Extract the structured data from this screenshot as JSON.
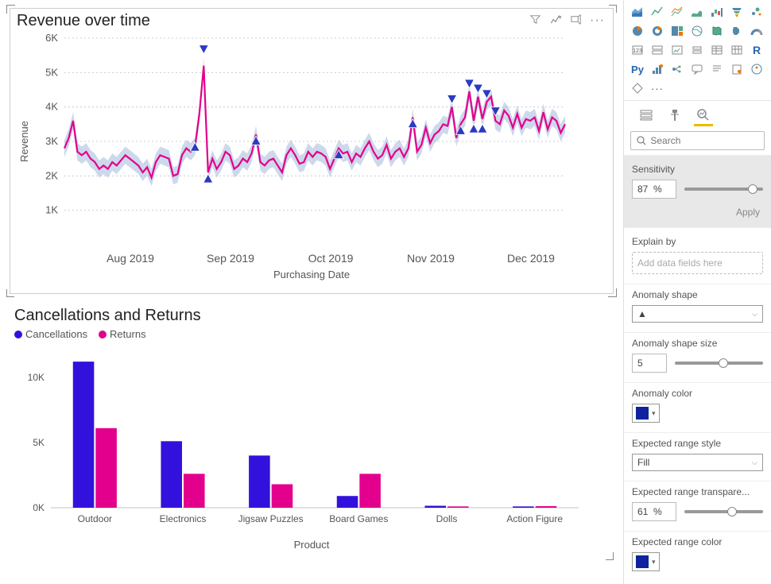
{
  "revenue_chart": {
    "title": "Revenue over time",
    "type": "line",
    "y_axis_label": "Revenue",
    "x_axis_label": "Purchasing Date",
    "ylim": [
      0,
      6000
    ],
    "ytick_step": 1000,
    "ytick_labels": [
      "1K",
      "2K",
      "3K",
      "4K",
      "5K",
      "6K"
    ],
    "x_categories": [
      "Aug 2019",
      "Sep 2019",
      "Oct 2019",
      "Nov 2019",
      "Dec 2019"
    ],
    "line_color": "#e3008c",
    "band_color": "#9bb4d8",
    "anomaly_marker_color": "#2a3ac4",
    "grid_color": "#cccccc",
    "background_color": "#ffffff",
    "label_fontsize": 13,
    "title_fontsize": 20,
    "series": [
      2800,
      3100,
      3600,
      2700,
      2600,
      2700,
      2500,
      2400,
      2200,
      2300,
      2200,
      2400,
      2300,
      2450,
      2600,
      2500,
      2400,
      2300,
      2100,
      2250,
      1950,
      2400,
      2600,
      2550,
      2500,
      2000,
      2050,
      2600,
      2800,
      2700,
      2850,
      3800,
      5200,
      2100,
      2500,
      2200,
      2400,
      2700,
      2600,
      2200,
      2300,
      2500,
      2400,
      2650,
      3200,
      2400,
      2300,
      2450,
      2500,
      2300,
      2100,
      2600,
      2800,
      2600,
      2350,
      2400,
      2700,
      2550,
      2700,
      2650,
      2550,
      2200,
      2500,
      2800,
      2650,
      2700,
      2400,
      2650,
      2550,
      2800,
      3000,
      2700,
      2500,
      2600,
      2900,
      2500,
      2700,
      2800,
      2550,
      2800,
      3700,
      2700,
      2900,
      3400,
      2950,
      3200,
      3300,
      3500,
      3450,
      4000,
      3100,
      3500,
      3700,
      4450,
      3600,
      4300,
      3650,
      4150,
      4300,
      3600,
      3500,
      3900,
      3750,
      3400,
      3800,
      3400,
      3650,
      3600,
      3700,
      3300,
      3850,
      3350,
      3700,
      3600,
      3250,
      3500
    ],
    "anomalies_up": [
      [
        32,
        5500
      ],
      [
        89,
        4050
      ],
      [
        93,
        4500
      ],
      [
        95,
        4360
      ],
      [
        97,
        4200
      ],
      [
        99,
        3700
      ]
    ],
    "anomalies_down": [
      [
        30,
        3020
      ],
      [
        33,
        2100
      ],
      [
        44,
        3200
      ],
      [
        63,
        2800
      ],
      [
        80,
        3700
      ],
      [
        91,
        3500
      ],
      [
        94,
        3550
      ],
      [
        96,
        3550
      ]
    ]
  },
  "bar_chart": {
    "title": "Cancellations and Returns",
    "type": "grouped-bar",
    "y_axis_label": "",
    "x_axis_label": "Product",
    "ylim": [
      0,
      12000
    ],
    "ytick_labels": [
      "0K",
      "5K",
      "10K"
    ],
    "ytick_values": [
      0,
      5000,
      10000
    ],
    "categories": [
      "Outdoor",
      "Electronics",
      "Jigsaw Puzzles",
      "Board Games",
      "Dolls",
      "Action Figure"
    ],
    "series": [
      {
        "name": "Cancellations",
        "color": "#3311dd",
        "values": [
          11200,
          5100,
          4000,
          900,
          150,
          100
        ]
      },
      {
        "name": "Returns",
        "color": "#e3008c",
        "values": [
          6100,
          2600,
          1800,
          2600,
          100,
          120
        ]
      }
    ],
    "bar_width": 0.35,
    "title_fontsize": 20,
    "label_fontsize": 12
  },
  "side_panel": {
    "search_placeholder": "Search",
    "sensitivity": {
      "label": "Sensitivity",
      "value": "87",
      "unit": "%",
      "slider_pos": 87,
      "apply_label": "Apply"
    },
    "explain_by": {
      "label": "Explain by",
      "placeholder": "Add data fields here"
    },
    "anomaly_shape": {
      "label": "Anomaly shape",
      "value": "▲"
    },
    "anomaly_shape_size": {
      "label": "Anomaly shape size",
      "value": "5",
      "slider_pos": 55
    },
    "anomaly_color": {
      "label": "Anomaly color",
      "value": "#10239e"
    },
    "expected_range_style": {
      "label": "Expected range style",
      "value": "Fill"
    },
    "expected_range_transparency": {
      "label": "Expected range transpare...",
      "value": "61",
      "unit": "%",
      "slider_pos": 61
    },
    "expected_range_color": {
      "label": "Expected range color",
      "value": "#10239e"
    }
  }
}
